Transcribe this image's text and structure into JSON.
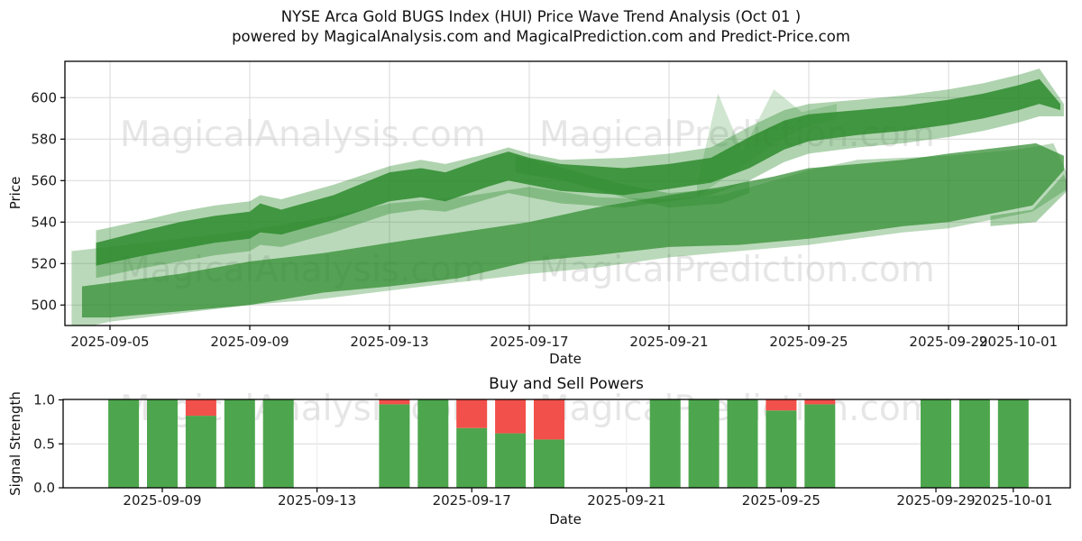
{
  "title": {
    "line1": "NYSE Arca Gold BUGS Index (HUI) Price Wave Trend Analysis (Oct 01 )",
    "line2": "powered by MagicalAnalysis.com and MagicalPrediction.com and Predict-Price.com"
  },
  "watermark": {
    "left": "MagicalAnalysis.com",
    "right": "MagicalPrediction.com"
  },
  "colors": {
    "band_green": "#2e8b2e",
    "bar_green": "#4da64d",
    "bar_red": "#f2504a",
    "grid": "#d9d9d9",
    "axis": "#000000",
    "watermark": "#c9c9c9",
    "tick_text": "#1a1a1a"
  },
  "chart_data": [
    {
      "type": "area",
      "ylabel": "Price",
      "xlabel": "Date",
      "ylim": [
        489.5,
        617.5
      ],
      "xlim_days": [
        2.7,
        31.5
      ],
      "grid": true,
      "yticks": [
        {
          "v": 500,
          "label": "500"
        },
        {
          "v": 520,
          "label": "520"
        },
        {
          "v": 540,
          "label": "540"
        },
        {
          "v": 560,
          "label": "560"
        },
        {
          "v": 580,
          "label": "580"
        },
        {
          "v": 600,
          "label": "600"
        }
      ],
      "xticks": [
        {
          "day": 4,
          "label": "2025-09-05"
        },
        {
          "day": 8,
          "label": "2025-09-09"
        },
        {
          "day": 12,
          "label": "2025-09-13"
        },
        {
          "day": 16,
          "label": "2025-09-17"
        },
        {
          "day": 20,
          "label": "2025-09-21"
        },
        {
          "day": 24,
          "label": "2025-09-25"
        },
        {
          "day": 28,
          "label": "2025-09-29"
        },
        {
          "day": 30,
          "label": "2025-10-01"
        }
      ],
      "bands": [
        {
          "name": "outer-light-wash",
          "opacity": 0.33,
          "top": [
            [
              2.9,
              526
            ],
            [
              5,
              530
            ],
            [
              6,
              532
            ],
            [
              8,
              536
            ],
            [
              10.4,
              543
            ],
            [
              12,
              549
            ],
            [
              14,
              552
            ],
            [
              16,
              557
            ],
            [
              17.9,
              552
            ],
            [
              20,
              551
            ],
            [
              21.5,
              553
            ],
            [
              23,
              560
            ],
            [
              24,
              565
            ],
            [
              25.4,
              570
            ],
            [
              28,
              572
            ],
            [
              30,
              575
            ],
            [
              31,
              578
            ],
            [
              31.4,
              563
            ]
          ],
          "bottom": [
            [
              31.4,
              556
            ],
            [
              30.4,
              545
            ],
            [
              29.2,
              541
            ],
            [
              28,
              537
            ],
            [
              26.7,
              535
            ],
            [
              24,
              529
            ],
            [
              22,
              526
            ],
            [
              20,
              523
            ],
            [
              17.9,
              518
            ],
            [
              16,
              515
            ],
            [
              14,
              511
            ],
            [
              12,
              507
            ],
            [
              10.1,
              503
            ],
            [
              8,
              500
            ],
            [
              6,
              496
            ],
            [
              4,
              492
            ],
            [
              3.2,
              489
            ],
            [
              2.9,
              488
            ]
          ]
        },
        {
          "name": "upper-band-halo",
          "opacity": 0.38,
          "top": [
            [
              3.6,
              536
            ],
            [
              5,
              541
            ],
            [
              6,
              545
            ],
            [
              7,
              548
            ],
            [
              8,
              550
            ],
            [
              8.3,
              553
            ],
            [
              8.9,
              551
            ],
            [
              10.4,
              558
            ],
            [
              12,
              567
            ],
            [
              12.9,
              570
            ],
            [
              13.6,
              568
            ],
            [
              14.8,
              573
            ],
            [
              15.4,
              576
            ],
            [
              16,
              573
            ],
            [
              16.9,
              570
            ],
            [
              18.7,
              571
            ],
            [
              20,
              573
            ],
            [
              21.2,
              576
            ],
            [
              22.3,
              586
            ],
            [
              23.3,
              594
            ],
            [
              24,
              597
            ],
            [
              25.4,
              599
            ],
            [
              26.7,
              601
            ],
            [
              28,
              604
            ],
            [
              29,
              607
            ],
            [
              30,
              611
            ],
            [
              30.6,
              614
            ],
            [
              31.3,
              597
            ]
          ],
          "bottom": [
            [
              31.3,
              591
            ],
            [
              30.6,
              591
            ],
            [
              30,
              588
            ],
            [
              29,
              584
            ],
            [
              28,
              581
            ],
            [
              26.7,
              578
            ],
            [
              25.4,
              576
            ],
            [
              24,
              573
            ],
            [
              23.3,
              569
            ],
            [
              22.3,
              560
            ],
            [
              21.2,
              553
            ],
            [
              20,
              550
            ],
            [
              18.7,
              547
            ],
            [
              16.9,
              549
            ],
            [
              16,
              552
            ],
            [
              15.4,
              554
            ],
            [
              14.8,
              551
            ],
            [
              13.6,
              545
            ],
            [
              12.9,
              546
            ],
            [
              12,
              544
            ],
            [
              10.4,
              535
            ],
            [
              8.9,
              528
            ],
            [
              8.3,
              529
            ],
            [
              8,
              526
            ],
            [
              7,
              524
            ],
            [
              6,
              521
            ],
            [
              5,
              518
            ],
            [
              3.6,
              513
            ]
          ]
        },
        {
          "name": "upper-band-core",
          "opacity": 0.85,
          "top": [
            [
              3.6,
              530
            ],
            [
              5,
              536
            ],
            [
              6,
              540
            ],
            [
              7,
              543
            ],
            [
              8,
              545
            ],
            [
              8.3,
              549
            ],
            [
              8.9,
              546
            ],
            [
              10.4,
              553
            ],
            [
              12,
              564
            ],
            [
              12.9,
              566
            ],
            [
              13.6,
              564
            ],
            [
              14.8,
              571
            ],
            [
              15.4,
              574
            ],
            [
              16,
              571
            ],
            [
              16.9,
              568
            ],
            [
              18.7,
              566
            ],
            [
              20,
              568
            ],
            [
              21.2,
              571
            ],
            [
              22.3,
              581
            ],
            [
              23.3,
              589
            ],
            [
              24,
              592
            ],
            [
              25.4,
              594
            ],
            [
              26.7,
              596
            ],
            [
              28,
              599
            ],
            [
              29,
              602
            ],
            [
              30,
              606
            ],
            [
              30.6,
              609
            ],
            [
              31.2,
              597
            ]
          ],
          "bottom": [
            [
              31.2,
              594
            ],
            [
              30.6,
              597
            ],
            [
              30,
              594
            ],
            [
              29,
              590
            ],
            [
              28,
              587
            ],
            [
              26.7,
              584
            ],
            [
              25.4,
              582
            ],
            [
              24,
              579
            ],
            [
              23.3,
              575
            ],
            [
              22.3,
              566
            ],
            [
              21.2,
              559
            ],
            [
              20,
              556
            ],
            [
              18.7,
              553
            ],
            [
              16.9,
              555
            ],
            [
              16,
              558
            ],
            [
              15.4,
              560
            ],
            [
              14.8,
              557
            ],
            [
              13.6,
              550
            ],
            [
              12.9,
              552
            ],
            [
              12,
              550
            ],
            [
              10.4,
              541
            ],
            [
              8.9,
              534
            ],
            [
              8.3,
              535
            ],
            [
              8,
              532
            ],
            [
              7,
              530
            ],
            [
              6,
              527
            ],
            [
              5,
              524
            ],
            [
              3.6,
              519
            ]
          ]
        },
        {
          "name": "lower-band",
          "opacity": 0.72,
          "top": [
            [
              3.2,
              509
            ],
            [
              6,
              515
            ],
            [
              8,
              521
            ],
            [
              10.1,
              525
            ],
            [
              12,
              530
            ],
            [
              14,
              535
            ],
            [
              16,
              540
            ],
            [
              17.9,
              547
            ],
            [
              20,
              553
            ],
            [
              21.5,
              557
            ],
            [
              23,
              562
            ],
            [
              24,
              566
            ],
            [
              25.4,
              568
            ],
            [
              26.7,
              570
            ],
            [
              28,
              573
            ],
            [
              29,
              575
            ],
            [
              30,
              577
            ],
            [
              30.5,
              578
            ],
            [
              31.3,
              572
            ]
          ],
          "bottom": [
            [
              31.3,
              565
            ],
            [
              30.4,
              548
            ],
            [
              29.2,
              544
            ],
            [
              28,
              540
            ],
            [
              26.7,
              538
            ],
            [
              25.4,
              535
            ],
            [
              24,
              532
            ],
            [
              22,
              529
            ],
            [
              20,
              528
            ],
            [
              17.9,
              524
            ],
            [
              16,
              521
            ],
            [
              14,
              513
            ],
            [
              12,
              509
            ],
            [
              10.1,
              506
            ],
            [
              8,
              500
            ],
            [
              6,
              497
            ],
            [
              4,
              494
            ],
            [
              3.2,
              494
            ]
          ]
        }
      ],
      "accents": [
        {
          "name": "crossing-arm",
          "opacity": 0.4,
          "pts": [
            [
              15.6,
              572
            ],
            [
              17,
              566
            ],
            [
              18.7,
              558
            ],
            [
              20,
              554
            ],
            [
              21.5,
              556
            ],
            [
              22.3,
              560
            ],
            [
              22.3,
              554
            ],
            [
              21.5,
              549
            ],
            [
              20,
              547
            ],
            [
              18.7,
              552
            ],
            [
              17,
              560
            ],
            [
              15.6,
              564
            ]
          ]
        },
        {
          "name": "light-spike",
          "opacity": 0.22,
          "pts": [
            [
              20.8,
              558
            ],
            [
              21.4,
              602
            ],
            [
              22.1,
              574
            ],
            [
              23,
              604
            ],
            [
              23.8,
              593
            ],
            [
              24.8,
              597
            ],
            [
              24.8,
              590
            ],
            [
              23.8,
              585
            ],
            [
              23,
              578
            ],
            [
              22.2,
              568
            ],
            [
              21.3,
              558
            ],
            [
              20.8,
              552
            ]
          ]
        },
        {
          "name": "lower-end-sliver",
          "opacity": 0.4,
          "pts": [
            [
              29.2,
              543
            ],
            [
              30.4,
              546
            ],
            [
              31.3,
              563
            ],
            [
              31.45,
              556
            ],
            [
              30.5,
              540
            ],
            [
              29.2,
              538
            ]
          ]
        }
      ]
    },
    {
      "type": "bar",
      "title": "Buy and Sell Powers",
      "ylabel": "Signal Strength",
      "xlabel": "Date",
      "ylim": [
        0.0,
        1.0
      ],
      "grid": true,
      "yticks": [
        {
          "v": 0.0,
          "label": "0.0"
        },
        {
          "v": 0.5,
          "label": "0.5"
        },
        {
          "v": 1.0,
          "label": "1.0"
        }
      ],
      "xticks": [
        {
          "day": 8,
          "label": "2025-09-09"
        },
        {
          "day": 12,
          "label": "2025-09-13"
        },
        {
          "day": 16,
          "label": "2025-09-17"
        },
        {
          "day": 20,
          "label": "2025-09-21"
        },
        {
          "day": 24,
          "label": "2025-09-25"
        },
        {
          "day": 28,
          "label": "2025-09-29"
        },
        {
          "day": 30,
          "label": "2025-10-01"
        }
      ],
      "categories": [
        "2025-09-08",
        "2025-09-09",
        "2025-09-10",
        "2025-09-11",
        "2025-09-12",
        "2025-09-15",
        "2025-09-16",
        "2025-09-17",
        "2025-09-18",
        "2025-09-19",
        "2025-09-22",
        "2025-09-23",
        "2025-09-24",
        "2025-09-25",
        "2025-09-26",
        "2025-09-29",
        "2025-09-30",
        "2025-10-01"
      ],
      "days": [
        7,
        8,
        9,
        10,
        11,
        14,
        15,
        16,
        17,
        18,
        21,
        22,
        23,
        24,
        25,
        28,
        29,
        30
      ],
      "series": [
        {
          "name": "Buy",
          "values": [
            1,
            1,
            0.82,
            1,
            1,
            0.95,
            1,
            0.68,
            0.62,
            0.55,
            1,
            1,
            1,
            0.88,
            0.95,
            1,
            1,
            1
          ]
        },
        {
          "name": "Sell",
          "values": [
            0,
            0,
            0.18,
            0,
            0,
            0.05,
            0,
            0.32,
            0.38,
            0.45,
            0,
            0,
            0,
            0.12,
            0.05,
            0,
            0,
            0
          ]
        }
      ]
    }
  ]
}
